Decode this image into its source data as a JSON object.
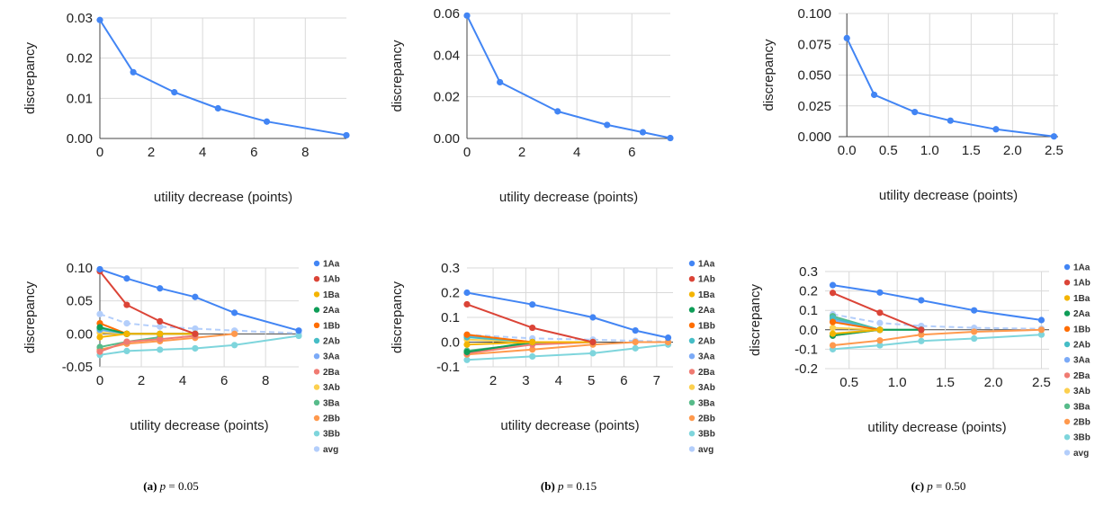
{
  "captions": [
    {
      "label": "(a)",
      "var": "p",
      "eq": " = 0.05"
    },
    {
      "label": "(b)",
      "var": "p",
      "eq": " = 0.15"
    },
    {
      "label": "(c)",
      "var": "p",
      "eq": " = 0.50"
    }
  ],
  "colors": {
    "1Aa": "#4285f4",
    "1Ab": "#db4437",
    "1Ba": "#f4b400",
    "2Aa": "#0f9d58",
    "1Bb": "#ff6d00",
    "2Ab": "#46bdc6",
    "3Aa": "#7baaf7",
    "2Ba": "#f07b72",
    "3Ab": "#fcd04f",
    "3Ba": "#57bb8a",
    "2Bb": "#ff994d",
    "3Bb": "#7ed5dc",
    "avg": "#b3cefb"
  },
  "chart_data": [
    {
      "type": "line",
      "panel": "a",
      "row": "top",
      "xlabel": "utility decrease (points)",
      "ylabel": "discrepancy",
      "xlim": [
        0,
        9.6
      ],
      "ylim": [
        0,
        0.03
      ],
      "xticks": [
        "0",
        "2",
        "4",
        "6",
        "8"
      ],
      "xtick_values": [
        0,
        2,
        4,
        6,
        8
      ],
      "yticks": [
        "0.00",
        "0.01",
        "0.02",
        "0.03"
      ],
      "ytick_values": [
        0,
        0.01,
        0.02,
        0.03
      ],
      "series": [
        {
          "key": "1Aa",
          "x": [
            0,
            1.3,
            2.9,
            4.6,
            6.5,
            9.6
          ],
          "y": [
            0.0295,
            0.0165,
            0.0115,
            0.0075,
            0.0042,
            0.0008
          ]
        }
      ]
    },
    {
      "type": "line",
      "panel": "b",
      "row": "top",
      "xlabel": "utility decrease (points)",
      "ylabel": "discrepancy",
      "xlim": [
        0,
        7.4
      ],
      "ylim": [
        0,
        0.06
      ],
      "xticks": [
        "0",
        "2",
        "4",
        "6"
      ],
      "xtick_values": [
        0,
        2,
        4,
        6
      ],
      "yticks": [
        "0.00",
        "0.02",
        "0.04",
        "0.06"
      ],
      "ytick_values": [
        0,
        0.02,
        0.04,
        0.06
      ],
      "series": [
        {
          "key": "1Aa",
          "x": [
            0,
            1.2,
            3.3,
            5.1,
            6.4,
            7.4
          ],
          "y": [
            0.059,
            0.027,
            0.013,
            0.0065,
            0.003,
            0.0002
          ]
        }
      ]
    },
    {
      "type": "line",
      "panel": "c",
      "row": "top",
      "xlabel": "utility decrease (points)",
      "ylabel": "discrepancy",
      "xlim": [
        -0.1,
        2.55
      ],
      "ylim": [
        0,
        0.1
      ],
      "xticks": [
        "0.0",
        "0.5",
        "1.0",
        "1.5",
        "2.0",
        "2.5"
      ],
      "xtick_values": [
        0,
        0.5,
        1.0,
        1.5,
        2.0,
        2.5
      ],
      "yticks": [
        "0.000",
        "0.025",
        "0.050",
        "0.075",
        "0.100"
      ],
      "ytick_values": [
        0,
        0.025,
        0.05,
        0.075,
        0.1
      ],
      "series": [
        {
          "key": "1Aa",
          "x": [
            0,
            0.33,
            0.82,
            1.25,
            1.8,
            2.5
          ],
          "y": [
            0.08,
            0.034,
            0.02,
            0.013,
            0.006,
            0.0002
          ]
        }
      ]
    },
    {
      "type": "line",
      "panel": "a",
      "row": "bottom",
      "xlabel": "utility decrease (points)",
      "ylabel": "discrepancy",
      "xlim": [
        0,
        9.6
      ],
      "ylim": [
        -0.05,
        0.1
      ],
      "xticks": [
        "0",
        "2",
        "4",
        "6",
        "8"
      ],
      "xtick_values": [
        0,
        2,
        4,
        6,
        8
      ],
      "yticks": [
        "-0.05",
        "0.00",
        "0.05",
        "0.10"
      ],
      "ytick_values": [
        -0.05,
        0,
        0.05,
        0.1
      ],
      "legend": [
        "1Aa",
        "1Ab",
        "1Ba",
        "2Aa",
        "1Bb",
        "2Ab",
        "3Aa",
        "2Ba",
        "3Ab",
        "3Ba",
        "2Bb",
        "3Bb",
        "avg"
      ],
      "series": [
        {
          "key": "1Aa",
          "x": [
            0,
            1.3,
            2.9,
            4.6,
            6.5,
            9.6
          ],
          "y": [
            0.098,
            0.084,
            0.069,
            0.056,
            0.032,
            0.005
          ]
        },
        {
          "key": "1Ab",
          "x": [
            0,
            1.3,
            2.9,
            4.6
          ],
          "y": [
            0.095,
            0.044,
            0.019,
            0
          ]
        },
        {
          "key": "1Ba",
          "x": [
            0,
            1.3,
            2.9,
            4.6
          ],
          "y": [
            -0.005,
            0,
            0,
            0
          ]
        },
        {
          "key": "2Aa",
          "x": [
            0,
            1.3,
            2.9,
            4.6
          ],
          "y": [
            0.01,
            0,
            0,
            0
          ]
        },
        {
          "key": "1Bb",
          "x": [
            0,
            1.3,
            2.9,
            4.6
          ],
          "y": [
            0.016,
            0,
            0,
            0
          ]
        },
        {
          "key": "2Ab",
          "x": [
            0,
            1.3
          ],
          "y": [
            0.008,
            0
          ]
        },
        {
          "key": "3Aa",
          "x": [
            0,
            1.3
          ],
          "y": [
            0.006,
            0
          ]
        },
        {
          "key": "2Ba",
          "x": [
            0,
            1.3,
            2.9,
            4.6
          ],
          "y": [
            -0.027,
            -0.012,
            -0.008,
            -0.003
          ]
        },
        {
          "key": "3Ab",
          "x": [
            0,
            1.3
          ],
          "y": [
            0.002,
            0
          ]
        },
        {
          "key": "3Ba",
          "x": [
            0,
            1.3,
            2.9
          ],
          "y": [
            -0.02,
            -0.012,
            -0.005
          ]
        },
        {
          "key": "2Bb",
          "x": [
            0,
            1.3,
            2.9,
            4.6,
            6.5
          ],
          "y": [
            -0.024,
            -0.015,
            -0.011,
            -0.006,
            0
          ]
        },
        {
          "key": "3Bb",
          "x": [
            0,
            1.3,
            2.9,
            4.6,
            6.5,
            9.6
          ],
          "y": [
            -0.032,
            -0.026,
            -0.024,
            -0.022,
            -0.017,
            -0.003
          ]
        },
        {
          "key": "avg",
          "dashed": true,
          "x": [
            0,
            1.3,
            2.9,
            4.6,
            6.5,
            9.6
          ],
          "y": [
            0.03,
            0.016,
            0.011,
            0.008,
            0.005,
            0.001
          ]
        }
      ]
    },
    {
      "type": "line",
      "panel": "b",
      "row": "bottom",
      "xlabel": "utility decrease (points)",
      "ylabel": "discrepancy",
      "xlim": [
        1.2,
        7.5
      ],
      "ylim": [
        -0.1,
        0.3
      ],
      "xticks": [
        "2",
        "3",
        "4",
        "5",
        "6",
        "7"
      ],
      "xtick_values": [
        2,
        3,
        4,
        5,
        6,
        7
      ],
      "yticks": [
        "-0.1",
        "0.0",
        "0.1",
        "0.2",
        "0.3"
      ],
      "ytick_values": [
        -0.1,
        0,
        0.1,
        0.2,
        0.3
      ],
      "legend": [
        "1Aa",
        "1Ab",
        "1Ba",
        "2Aa",
        "1Bb",
        "2Ab",
        "3Aa",
        "2Ba",
        "3Ab",
        "3Ba",
        "2Bb",
        "3Bb",
        "avg"
      ],
      "series": [
        {
          "key": "1Aa",
          "x": [
            1.2,
            3.2,
            5.05,
            6.35,
            7.35
          ],
          "y": [
            0.2,
            0.152,
            0.1,
            0.047,
            0.018
          ]
        },
        {
          "key": "1Ab",
          "x": [
            1.2,
            3.2,
            5.05
          ],
          "y": [
            0.153,
            0.058,
            0
          ]
        },
        {
          "key": "1Ba",
          "x": [
            1.2,
            3.2,
            5.05
          ],
          "y": [
            -0.01,
            0,
            0
          ]
        },
        {
          "key": "2Aa",
          "x": [
            1.2,
            3.2,
            5.05
          ],
          "y": [
            -0.04,
            0,
            0
          ]
        },
        {
          "key": "1Bb",
          "x": [
            1.2,
            3.2,
            5.05
          ],
          "y": [
            0.03,
            0,
            0
          ]
        },
        {
          "key": "2Ab",
          "x": [
            1.2,
            3.2
          ],
          "y": [
            0.02,
            0
          ]
        },
        {
          "key": "3Aa",
          "x": [
            1.2,
            3.2
          ],
          "y": [
            0.025,
            0
          ]
        },
        {
          "key": "2Ba",
          "x": [
            1.2,
            3.2,
            5.05
          ],
          "y": [
            -0.045,
            -0.01,
            0
          ]
        },
        {
          "key": "3Ab",
          "x": [
            1.2,
            3.2
          ],
          "y": [
            0.01,
            0
          ]
        },
        {
          "key": "3Ba",
          "x": [
            1.2,
            3.2,
            5.05
          ],
          "y": [
            -0.035,
            -0.005,
            0
          ]
        },
        {
          "key": "2Bb",
          "x": [
            1.2,
            3.2,
            5.05,
            6.35,
            7.35
          ],
          "y": [
            -0.05,
            -0.03,
            -0.01,
            0,
            0
          ]
        },
        {
          "key": "3Bb",
          "x": [
            1.2,
            3.2,
            5.05,
            6.35,
            7.35
          ],
          "y": [
            -0.072,
            -0.058,
            -0.045,
            -0.025,
            -0.01
          ]
        },
        {
          "key": "avg",
          "dashed": true,
          "x": [
            1.2,
            3.2,
            5.05,
            6.35,
            7.35
          ],
          "y": [
            0.03,
            0.015,
            0.01,
            0.005,
            0.002
          ]
        }
      ]
    },
    {
      "type": "line",
      "panel": "c",
      "row": "bottom",
      "xlabel": "utility decrease (points)",
      "ylabel": "discrepancy",
      "xlim": [
        0.25,
        2.58
      ],
      "ylim": [
        -0.2,
        0.3
      ],
      "xticks": [
        "0.5",
        "1.0",
        "1.5",
        "2.0",
        "2.5"
      ],
      "xtick_values": [
        0.5,
        1.0,
        1.5,
        2.0,
        2.5
      ],
      "yticks": [
        "-0.2",
        "-0.1",
        "0.0",
        "0.1",
        "0.2",
        "0.3"
      ],
      "ytick_values": [
        -0.2,
        -0.1,
        0,
        0.1,
        0.2,
        0.3
      ],
      "legend": [
        "1Aa",
        "1Ab",
        "1Ba",
        "2Aa",
        "1Bb",
        "2Ab",
        "3Aa",
        "2Ba",
        "3Ab",
        "3Ba",
        "2Bb",
        "3Bb",
        "avg"
      ],
      "series": [
        {
          "key": "1Aa",
          "x": [
            0.33,
            0.82,
            1.25,
            1.8,
            2.5
          ],
          "y": [
            0.23,
            0.192,
            0.152,
            0.1,
            0.05
          ]
        },
        {
          "key": "1Ab",
          "x": [
            0.33,
            0.82,
            1.25
          ],
          "y": [
            0.19,
            0.088,
            0
          ]
        },
        {
          "key": "1Ba",
          "x": [
            0.33,
            0.82
          ],
          "y": [
            -0.02,
            0
          ]
        },
        {
          "key": "2Aa",
          "x": [
            0.33,
            0.82,
            1.25
          ],
          "y": [
            -0.03,
            0,
            0
          ]
        },
        {
          "key": "1Bb",
          "x": [
            0.33,
            0.82
          ],
          "y": [
            0.04,
            0
          ]
        },
        {
          "key": "2Ab",
          "x": [
            0.33,
            0.82
          ],
          "y": [
            0.06,
            0
          ]
        },
        {
          "key": "3Aa",
          "x": [
            0.33,
            0.82
          ],
          "y": [
            0.05,
            0
          ]
        },
        {
          "key": "2Ba",
          "x": [
            0.33,
            0.82
          ],
          "y": [
            -0.03,
            0
          ]
        },
        {
          "key": "3Ab",
          "x": [
            0.33,
            0.82
          ],
          "y": [
            0.01,
            0
          ]
        },
        {
          "key": "3Ba",
          "x": [
            0.33,
            0.82,
            1.25
          ],
          "y": [
            0.07,
            0,
            0
          ]
        },
        {
          "key": "2Bb",
          "x": [
            0.33,
            0.82,
            1.25,
            1.8,
            2.5
          ],
          "y": [
            -0.08,
            -0.055,
            -0.025,
            -0.01,
            0
          ]
        },
        {
          "key": "3Bb",
          "x": [
            0.33,
            0.82,
            1.25,
            1.8,
            2.5
          ],
          "y": [
            -0.1,
            -0.08,
            -0.058,
            -0.045,
            -0.025
          ]
        },
        {
          "key": "avg",
          "dashed": true,
          "x": [
            0.33,
            0.82,
            1.25,
            1.8,
            2.5
          ],
          "y": [
            0.08,
            0.035,
            0.02,
            0.01,
            0.005
          ]
        }
      ]
    }
  ]
}
